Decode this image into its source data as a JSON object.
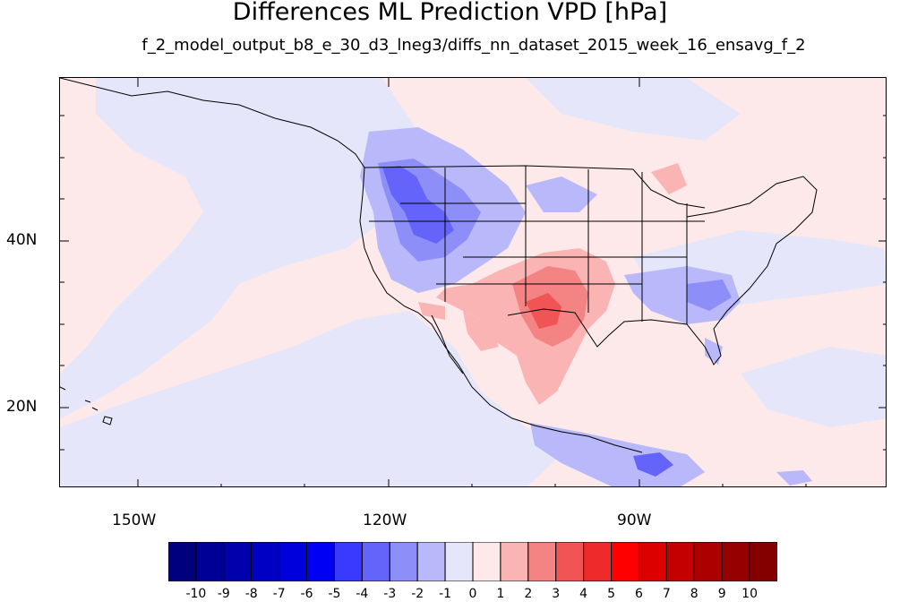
{
  "title": "Differences ML Prediction VPD [hPa]",
  "subtitle": "f_2_model_output_b8_e_30_d3_lneg3/diffs_nn_dataset_2015_week_16_ensavg_f_2",
  "x_axis": {
    "tick_labels": [
      "150W",
      "120W",
      "90W"
    ]
  },
  "y_axis": {
    "tick_labels": [
      "40N",
      "20N"
    ]
  },
  "map": {
    "type": "filled-contour",
    "lon_range": [
      -159,
      -60
    ],
    "lat_range": [
      11,
      60
    ],
    "background_fill": "#fde9e9",
    "regions": [
      {
        "name": "pacific-negative",
        "level": -1
      },
      {
        "name": "west-us-negative",
        "level": -4
      },
      {
        "name": "texas-positive",
        "level": 3
      },
      {
        "name": "southeast-negative",
        "level": -3
      },
      {
        "name": "central-america-negative",
        "level": -4
      }
    ]
  },
  "colorbar": {
    "labels": [
      "-10",
      "-9",
      "-8",
      "-7",
      "-6",
      "-5",
      "-4",
      "-3",
      "-2",
      "-1",
      "0",
      "1",
      "2",
      "3",
      "4",
      "5",
      "6",
      "7",
      "8",
      "9",
      "10"
    ],
    "colors": [
      "#00007f",
      "#000096",
      "#0000ad",
      "#0000c4",
      "#0000db",
      "#0000f2",
      "#3a3afc",
      "#6464fa",
      "#8e8ef8",
      "#b8b8fa",
      "#e6e6fa",
      "#fde9e9",
      "#fab4b4",
      "#f48484",
      "#f05454",
      "#ee2a2a",
      "#ff0000",
      "#dd0000",
      "#c40000",
      "#aa0000",
      "#970000",
      "#840000"
    ]
  }
}
